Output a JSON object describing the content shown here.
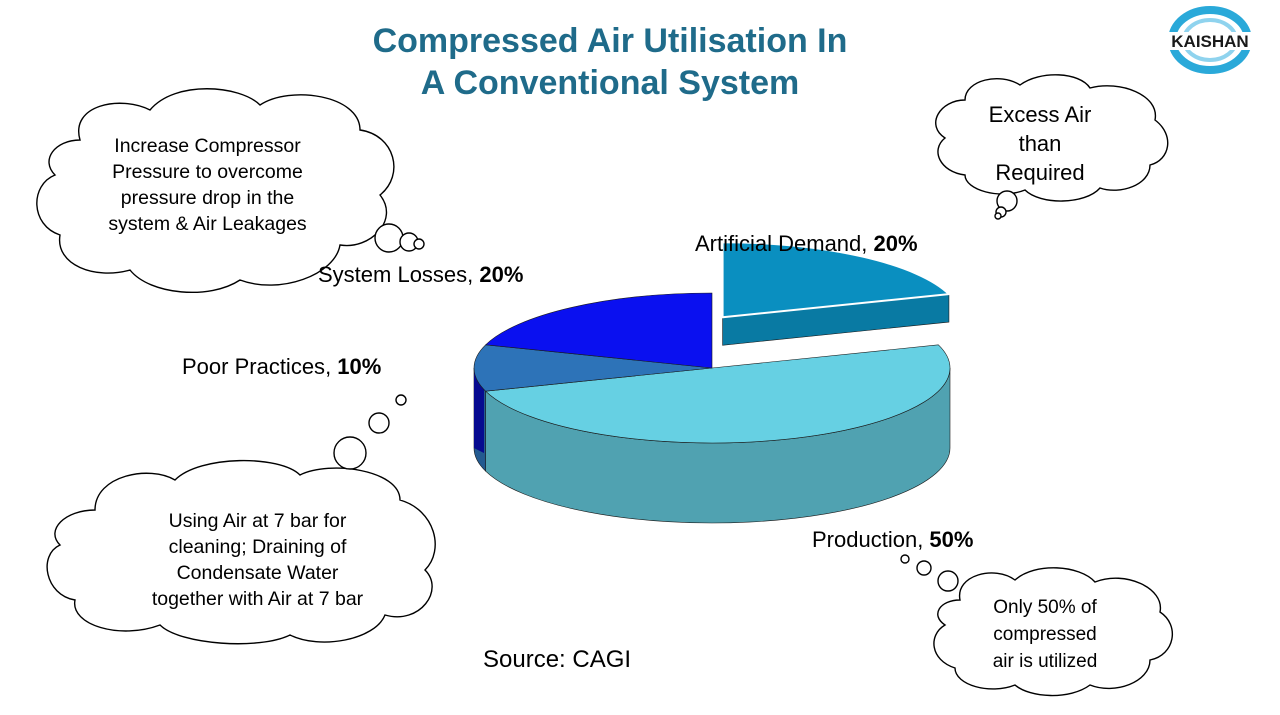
{
  "slide": {
    "title_line1": "Compressed Air Utilisation In",
    "title_line2": "A Conventional System",
    "logo_text": "KAISHAN",
    "source": "Source: CAGI"
  },
  "clouds": {
    "system_losses_note": [
      "Increase Compressor",
      "Pressure to overcome",
      "pressure drop in the",
      "system & Air Leakages"
    ],
    "artificial_demand_note": [
      "Excess Air",
      "than",
      "Required"
    ],
    "poor_practices_note": [
      "Using Air at 7 bar for",
      "cleaning; Draining of",
      "Condensate Water",
      "together with Air at 7 bar"
    ],
    "production_note": [
      "Only 50% of",
      "compressed",
      "air is utilized"
    ]
  },
  "chart_data": {
    "type": "pie",
    "style": "3d",
    "title": "",
    "categories": [
      "Artificial Demand",
      "Production",
      "Poor Practices",
      "System Losses"
    ],
    "values": [
      20,
      50,
      10,
      20
    ],
    "value_labels": [
      "20%",
      "50%",
      "10%",
      "20%"
    ],
    "colors": [
      "#0a8fc0",
      "#66d0e3",
      "#2d73b8",
      "#0a10f0"
    ],
    "exploded": "Artificial Demand",
    "legend": "none",
    "label_style": "category-name, bold percentage"
  }
}
